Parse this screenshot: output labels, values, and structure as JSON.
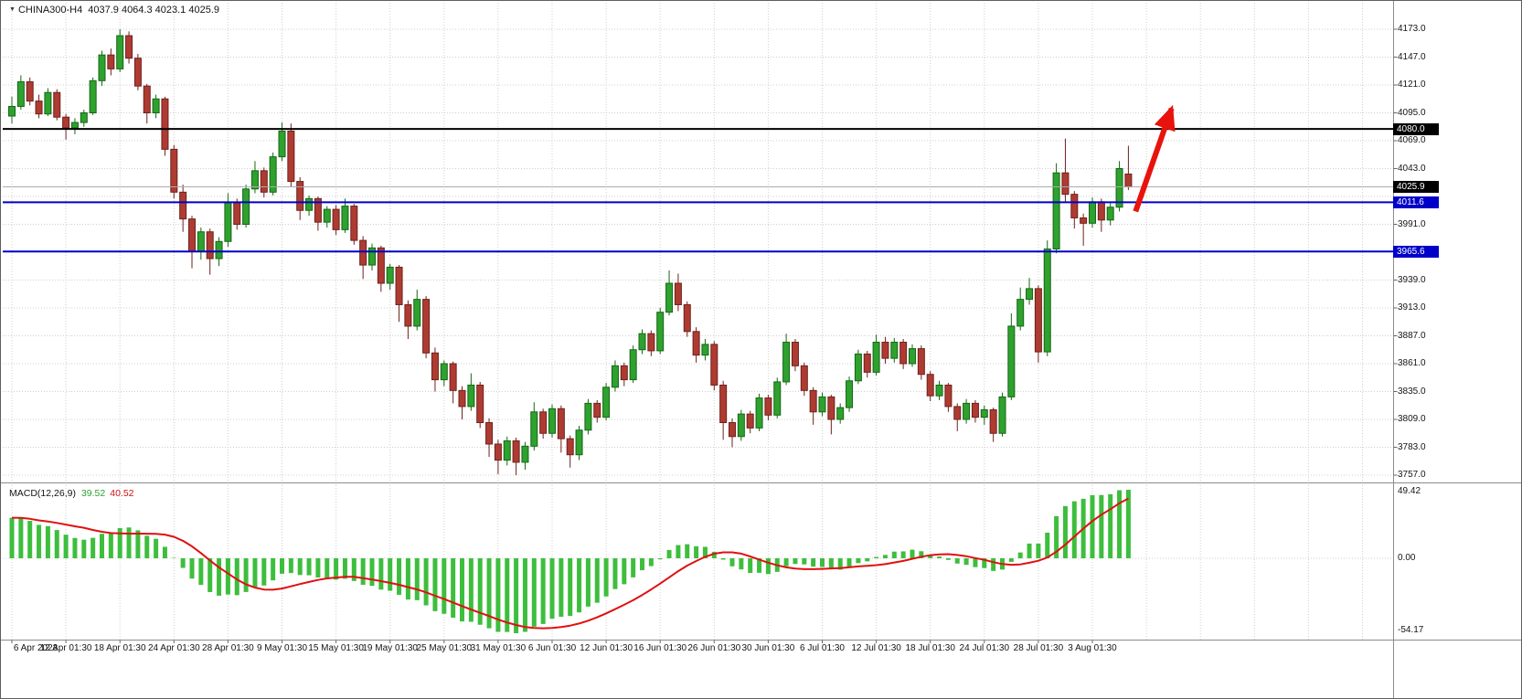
{
  "header": {
    "symbol": "CHINA300-H4",
    "ohlc": "4037.9 4064.3 4023.1 4025.9"
  },
  "macd_header": {
    "name": "MACD(12,26,9)",
    "main": "39.52",
    "signal": "40.52"
  },
  "colors": {
    "background": "#ffffff",
    "grid": "#cfcfcf",
    "bull_body": "#2ea12e",
    "bull_edge": "#156715",
    "bear_body": "#ae3b32",
    "bear_edge": "#6e211b",
    "macd_bar": "#3dbe3d",
    "macd_signal": "#e01010",
    "axis_text": "#141414",
    "badge_text": "#ffffff",
    "black_line": "#000000",
    "blue_line": "#0000c8",
    "bid_line": "#ababab",
    "arrow": "#e8130c"
  },
  "chart_data": {
    "type": "candlestick",
    "title": "CHINA300-H4",
    "timeframe": "H4",
    "grid": true,
    "legend_position": "none",
    "bars_per_label": 6,
    "last_ohlc": {
      "open": 4037.9,
      "high": 4064.3,
      "low": 4023.1,
      "close": 4025.9
    },
    "price_axis": {
      "max": 4173.0,
      "min": 3757.0,
      "step": 26.0,
      "ticks": [
        "4173.0",
        "4147.0",
        "4121.0",
        "4095.0",
        "4069.0",
        "4043.0",
        "3991.0",
        "3939.0",
        "3913.0",
        "3887.0",
        "3861.0",
        "3835.0",
        "3809.0",
        "3783.0",
        "3757.0"
      ]
    },
    "time_labels": [
      "6 Apr 2023",
      "12 Apr 01:30",
      "18 Apr 01:30",
      "24 Apr 01:30",
      "28 Apr 01:30",
      "9 May 01:30",
      "15 May 01:30",
      "19 May 01:30",
      "25 May 01:30",
      "31 May 01:30",
      "6 Jun 01:30",
      "12 Jun 01:30",
      "16 Jun 01:30",
      "26 Jun 01:30",
      "30 Jun 01:30",
      "6 Jul 01:30",
      "12 Jul 01:30",
      "18 Jul 01:30",
      "24 Jul 01:30",
      "28 Jul 01:30",
      "3 Aug 01:30"
    ],
    "candles": [
      [
        4092,
        4110,
        4085,
        4101
      ],
      [
        4101,
        4130,
        4098,
        4124
      ],
      [
        4124,
        4128,
        4102,
        4106
      ],
      [
        4106,
        4112,
        4090,
        4094
      ],
      [
        4094,
        4118,
        4092,
        4114
      ],
      [
        4114,
        4117,
        4088,
        4091
      ],
      [
        4091,
        4094,
        4070,
        4081
      ],
      [
        4081,
        4090,
        4075,
        4086
      ],
      [
        4086,
        4098,
        4082,
        4095
      ],
      [
        4095,
        4128,
        4093,
        4125
      ],
      [
        4125,
        4153,
        4120,
        4149
      ],
      [
        4149,
        4155,
        4130,
        4136
      ],
      [
        4136,
        4173,
        4133,
        4167
      ],
      [
        4167,
        4171,
        4141,
        4146
      ],
      [
        4146,
        4150,
        4116,
        4120
      ],
      [
        4120,
        4122,
        4085,
        4095
      ],
      [
        4095,
        4112,
        4090,
        4108
      ],
      [
        4108,
        4110,
        4055,
        4061
      ],
      [
        4061,
        4065,
        4015,
        4021
      ],
      [
        4021,
        4028,
        3984,
        3996
      ],
      [
        3996,
        3999,
        3950,
        3966
      ],
      [
        3966,
        3988,
        3958,
        3984
      ],
      [
        3984,
        3987,
        3944,
        3959
      ],
      [
        3959,
        3979,
        3952,
        3975
      ],
      [
        3975,
        4020,
        3970,
        4011
      ],
      [
        4011,
        4015,
        3986,
        3991
      ],
      [
        3991,
        4028,
        3988,
        4024
      ],
      [
        4024,
        4050,
        4020,
        4041
      ],
      [
        4041,
        4044,
        4016,
        4021
      ],
      [
        4021,
        4058,
        4018,
        4054
      ],
      [
        4054,
        4086,
        4050,
        4078
      ],
      [
        4078,
        4085,
        4026,
        4031
      ],
      [
        4031,
        4035,
        3995,
        4004
      ],
      [
        4004,
        4018,
        3999,
        4015
      ],
      [
        4015,
        4017,
        3985,
        3993
      ],
      [
        3993,
        4008,
        3988,
        4005
      ],
      [
        4005,
        4009,
        3981,
        3986
      ],
      [
        3986,
        4015,
        3983,
        4008
      ],
      [
        4008,
        4010,
        3972,
        3976
      ],
      [
        3976,
        3980,
        3940,
        3953
      ],
      [
        3953,
        3973,
        3948,
        3969
      ],
      [
        3969,
        3971,
        3928,
        3936
      ],
      [
        3936,
        3954,
        3930,
        3951
      ],
      [
        3951,
        3953,
        3900,
        3916
      ],
      [
        3916,
        3920,
        3884,
        3896
      ],
      [
        3896,
        3930,
        3892,
        3921
      ],
      [
        3921,
        3924,
        3866,
        3871
      ],
      [
        3871,
        3876,
        3835,
        3846
      ],
      [
        3846,
        3864,
        3840,
        3861
      ],
      [
        3861,
        3863,
        3824,
        3836
      ],
      [
        3836,
        3840,
        3809,
        3821
      ],
      [
        3821,
        3852,
        3817,
        3841
      ],
      [
        3841,
        3844,
        3801,
        3806
      ],
      [
        3806,
        3810,
        3774,
        3786
      ],
      [
        3786,
        3790,
        3758,
        3771
      ],
      [
        3771,
        3793,
        3766,
        3789
      ],
      [
        3789,
        3792,
        3757,
        3769
      ],
      [
        3769,
        3788,
        3762,
        3784
      ],
      [
        3784,
        3825,
        3780,
        3816
      ],
      [
        3816,
        3819,
        3791,
        3796
      ],
      [
        3796,
        3823,
        3792,
        3819
      ],
      [
        3819,
        3822,
        3778,
        3791
      ],
      [
        3791,
        3794,
        3764,
        3776
      ],
      [
        3776,
        3803,
        3771,
        3799
      ],
      [
        3799,
        3828,
        3795,
        3824
      ],
      [
        3824,
        3827,
        3806,
        3811
      ],
      [
        3811,
        3843,
        3808,
        3839
      ],
      [
        3839,
        3864,
        3835,
        3859
      ],
      [
        3859,
        3862,
        3840,
        3846
      ],
      [
        3846,
        3878,
        3843,
        3874
      ],
      [
        3874,
        3893,
        3870,
        3889
      ],
      [
        3889,
        3892,
        3868,
        3873
      ],
      [
        3873,
        3913,
        3870,
        3909
      ],
      [
        3909,
        3948,
        3906,
        3936
      ],
      [
        3936,
        3945,
        3910,
        3916
      ],
      [
        3916,
        3919,
        3886,
        3891
      ],
      [
        3891,
        3895,
        3862,
        3869
      ],
      [
        3869,
        3884,
        3864,
        3879
      ],
      [
        3879,
        3882,
        3836,
        3841
      ],
      [
        3841,
        3845,
        3790,
        3806
      ],
      [
        3806,
        3810,
        3783,
        3793
      ],
      [
        3793,
        3818,
        3789,
        3814
      ],
      [
        3814,
        3817,
        3796,
        3801
      ],
      [
        3801,
        3833,
        3798,
        3829
      ],
      [
        3829,
        3832,
        3808,
        3813
      ],
      [
        3813,
        3848,
        3810,
        3844
      ],
      [
        3844,
        3889,
        3841,
        3881
      ],
      [
        3881,
        3884,
        3854,
        3859
      ],
      [
        3859,
        3862,
        3831,
        3836
      ],
      [
        3836,
        3839,
        3804,
        3816
      ],
      [
        3816,
        3834,
        3812,
        3830
      ],
      [
        3830,
        3832,
        3795,
        3809
      ],
      [
        3809,
        3824,
        3805,
        3820
      ],
      [
        3820,
        3849,
        3816,
        3845
      ],
      [
        3845,
        3874,
        3842,
        3870
      ],
      [
        3870,
        3873,
        3848,
        3853
      ],
      [
        3853,
        3888,
        3850,
        3881
      ],
      [
        3881,
        3886,
        3861,
        3866
      ],
      [
        3866,
        3885,
        3862,
        3881
      ],
      [
        3881,
        3884,
        3856,
        3861
      ],
      [
        3861,
        3879,
        3858,
        3875
      ],
      [
        3875,
        3878,
        3846,
        3851
      ],
      [
        3851,
        3854,
        3826,
        3831
      ],
      [
        3831,
        3845,
        3827,
        3841
      ],
      [
        3841,
        3843,
        3816,
        3821
      ],
      [
        3821,
        3824,
        3798,
        3809
      ],
      [
        3809,
        3828,
        3805,
        3824
      ],
      [
        3824,
        3827,
        3806,
        3811
      ],
      [
        3811,
        3822,
        3804,
        3818
      ],
      [
        3818,
        3820,
        3788,
        3796
      ],
      [
        3796,
        3834,
        3793,
        3830
      ],
      [
        3830,
        3908,
        3827,
        3896
      ],
      [
        3896,
        3932,
        3892,
        3921
      ],
      [
        3921,
        3941,
        3916,
        3931
      ],
      [
        3931,
        3934,
        3862,
        3872
      ],
      [
        3872,
        3976,
        3868,
        3968
      ],
      [
        3968,
        4048,
        3964,
        4039
      ],
      [
        4039,
        4071,
        4012,
        4019
      ],
      [
        4019,
        4022,
        3987,
        3997
      ],
      [
        3997,
        4001,
        3971,
        3992
      ],
      [
        3992,
        4016,
        3988,
        4012
      ],
      [
        4012,
        4015,
        3984,
        3995
      ],
      [
        3995,
        4011,
        3990,
        4007
      ],
      [
        4007,
        4050,
        4003,
        4043
      ],
      [
        4037.9,
        4064.3,
        4023.1,
        4025.9
      ]
    ],
    "hlines": [
      {
        "price": 4080.0,
        "color": "#000000",
        "width": 2,
        "label": "4080.0",
        "label_bg": "#000000"
      },
      {
        "price": 4011.6,
        "color": "#0000c8",
        "width": 2,
        "label": "4011.6",
        "label_bg": "#0000c8"
      },
      {
        "price": 3965.6,
        "color": "#0000c8",
        "width": 2,
        "label": "3965.6",
        "label_bg": "#0000c8"
      }
    ],
    "bid_line": {
      "price": 4025.9,
      "color": "#ababab",
      "label": "4025.9",
      "label_bg": "#000000"
    },
    "macd": {
      "params": [
        12,
        26,
        9
      ],
      "main_value": 39.52,
      "signal_value": 40.52,
      "axis_labels": [
        "49.42",
        "0.00",
        "-54.17"
      ],
      "warmup_bias": 28
    },
    "arrow": {
      "from_bar": 124.8,
      "from_price": 4003,
      "to_bar": 128.8,
      "to_price": 4099,
      "color": "#e8130c"
    }
  }
}
